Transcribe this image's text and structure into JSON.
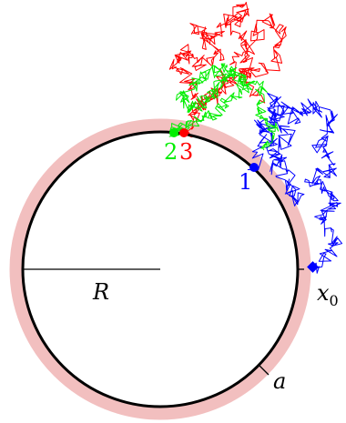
{
  "labels": {
    "radius": "R",
    "shell": "a",
    "start": "x",
    "start_sub": "0",
    "hit_blue": "1",
    "hit_green": "2",
    "hit_red": "3"
  },
  "colors": {
    "shell": "#f2bfbf",
    "circle": "#000000",
    "blue": "#0000ff",
    "green": "#00ee00",
    "red": "#ff0000"
  }
}
